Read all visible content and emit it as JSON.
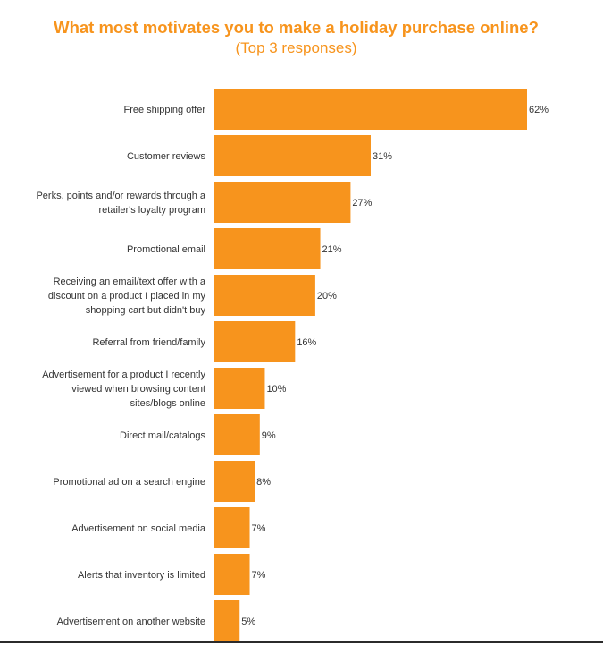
{
  "chart_data": {
    "type": "bar",
    "orientation": "horizontal",
    "title": "What most motivates you to make a holiday purchase online?",
    "subtitle": "(Top 3 responses)",
    "categories": [
      [
        "Free shipping offer"
      ],
      [
        "Customer reviews"
      ],
      [
        "Perks, points and/or rewards through a",
        "retailer's loyalty program"
      ],
      [
        "Promotional email"
      ],
      [
        "Receiving an email/text offer with a",
        "discount on a product I placed in my",
        "shopping cart but didn't buy"
      ],
      [
        "Referral from friend/family"
      ],
      [
        "Advertisement for a product I recently",
        "viewed when browsing content",
        "sites/blogs online"
      ],
      [
        "Direct mail/catalogs"
      ],
      [
        "Promotional ad on a search engine"
      ],
      [
        "Advertisement on social media"
      ],
      [
        "Alerts that inventory is limited"
      ],
      [
        "Advertisement on another website"
      ]
    ],
    "values": [
      62,
      31,
      27,
      21,
      20,
      16,
      10,
      9,
      8,
      7,
      7,
      5
    ],
    "value_labels": [
      "62%",
      "31%",
      "27%",
      "21%",
      "20%",
      "16%",
      "10%",
      "9%",
      "8%",
      "7%",
      "7%",
      "5%"
    ],
    "bar_color": "#f7941d",
    "grid": false,
    "legend": "none"
  }
}
